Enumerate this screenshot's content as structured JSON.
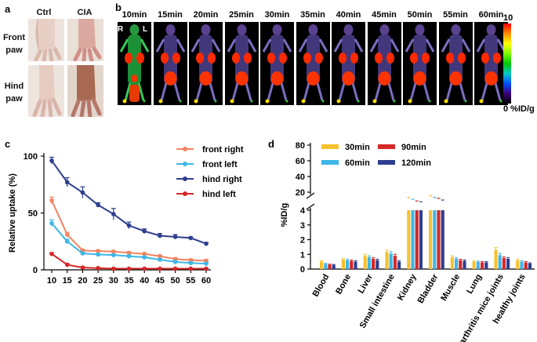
{
  "panel_a": {
    "label": "a",
    "columns": [
      "Ctrl",
      "CIA"
    ],
    "rows": [
      [
        "Front",
        "paw"
      ],
      [
        "Hind",
        "paw"
      ]
    ]
  },
  "panel_b": {
    "label": "b",
    "times": [
      "10min",
      "15min",
      "20min",
      "25min",
      "30min",
      "35min",
      "40min",
      "45min",
      "50min",
      "55min",
      "60min"
    ],
    "side_labels": [
      "R",
      "L"
    ],
    "colorbar": {
      "max": "10",
      "min_label": "0 %ID/g"
    }
  },
  "panel_c": {
    "label": "c"
  },
  "panel_d": {
    "label": "d"
  },
  "chart_data": [
    {
      "type": "line",
      "x": [
        10,
        15,
        20,
        25,
        30,
        35,
        40,
        45,
        50,
        55,
        60
      ],
      "xlabel": "",
      "ylabel": "Relative uptake (%)",
      "ylim": [
        0,
        100
      ],
      "yticks": [
        0,
        50,
        100
      ],
      "legend": "top-right",
      "series": [
        {
          "name": "front right",
          "color": "#f4845f",
          "values": [
            61,
            31,
            17,
            16.5,
            16,
            15,
            14,
            12,
            9.5,
            8.5,
            8
          ]
        },
        {
          "name": "front left",
          "color": "#3fb6e6",
          "values": [
            41,
            25,
            14.5,
            13.5,
            13,
            12,
            11,
            9,
            7,
            6,
            5.5
          ]
        },
        {
          "name": "hind right",
          "color": "#2e3f8f",
          "values": [
            96,
            77,
            68,
            57,
            49,
            39,
            34,
            30,
            29,
            28,
            23
          ]
        },
        {
          "name": "hind left",
          "color": "#d62728",
          "values": [
            14,
            4.5,
            2,
            1.5,
            1,
            1,
            1,
            1,
            1,
            1,
            1
          ]
        }
      ],
      "errors": {
        "front right": [
          3,
          2,
          1,
          1,
          1,
          1,
          1,
          1,
          1,
          1,
          1
        ],
        "front left": [
          3,
          2,
          1,
          1,
          1,
          1,
          1,
          1,
          1,
          1,
          1
        ],
        "hind right": [
          3,
          4,
          5,
          2,
          5,
          3,
          2,
          2,
          2,
          1,
          1
        ],
        "hind left": [
          1,
          1,
          0.5,
          0.5,
          0.5,
          0.5,
          0.5,
          0.5,
          0.5,
          0.5,
          0.5
        ]
      }
    },
    {
      "type": "bar",
      "categories": [
        "Blood",
        "Bone",
        "Liver",
        "Small intestine",
        "Kidney",
        "Bladder",
        "Muscle",
        "Lung",
        "arthritis mice joints",
        "healthy joints"
      ],
      "ylabel": "%ID/g",
      "ylim": [
        0,
        80
      ],
      "yticks_lower": [
        0,
        1,
        2,
        3,
        4
      ],
      "yticks_upper": [
        20,
        40,
        60,
        80
      ],
      "axis_break": [
        4,
        4
      ],
      "legend": "top-left",
      "series": [
        {
          "name": "30min",
          "color": "#f6c12d",
          "values": [
            0.5,
            0.65,
            0.9,
            1.15,
            12,
            14,
            0.8,
            0.5,
            1.3,
            0.6
          ]
        },
        {
          "name": "60min",
          "color": "#3fb6e6",
          "values": [
            0.35,
            0.6,
            0.8,
            1.05,
            10,
            12,
            0.7,
            0.48,
            0.95,
            0.5
          ]
        },
        {
          "name": "90min",
          "color": "#d62728",
          "values": [
            0.3,
            0.55,
            0.7,
            0.9,
            8,
            11,
            0.6,
            0.45,
            0.75,
            0.45
          ]
        },
        {
          "name": "120min",
          "color": "#2e3f8f",
          "values": [
            0.28,
            0.5,
            0.6,
            0.5,
            7,
            9,
            0.55,
            0.45,
            0.7,
            0.38
          ]
        }
      ]
    }
  ]
}
